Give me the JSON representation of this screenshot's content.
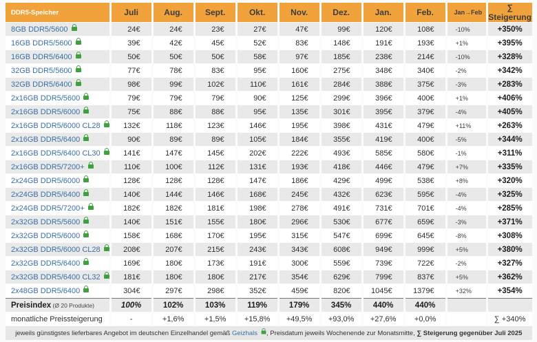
{
  "colors": {
    "header_orange": "#f1a23a",
    "link_blue": "#3a6ea5",
    "lock_green": "#3fa03f",
    "row_gray": "#e9e9e9"
  },
  "table": {
    "header": {
      "name_col": "DDR5-Speicher",
      "months": [
        "Juli",
        "Aug.",
        "Sept.",
        "Okt.",
        "Nov.",
        "Dez.",
        "Jan.",
        "Feb."
      ],
      "change_col": "Jan→Feb",
      "total_col": "∑ Steigerung"
    },
    "rows": [
      {
        "name": "8GB DDR5/5600",
        "prices": [
          "24€",
          "24€",
          "23€",
          "27€",
          "47€",
          "99€",
          "120€",
          "108€"
        ],
        "change": "-10%",
        "total": "+350%"
      },
      {
        "name": "16GB DDR5/5600",
        "prices": [
          "39€",
          "42€",
          "45€",
          "52€",
          "83€",
          "148€",
          "191€",
          "193€"
        ],
        "change": "+1%",
        "total": "+395%"
      },
      {
        "name": "16GB DDR5/6400",
        "prices": [
          "50€",
          "50€",
          "50€",
          "58€",
          "97€",
          "185€",
          "238€",
          "214€"
        ],
        "change": "-10%",
        "total": "+328%"
      },
      {
        "name": "32GB DDR5/5600",
        "prices": [
          "77€",
          "78€",
          "83€",
          "95€",
          "160€",
          "275€",
          "348€",
          "340€"
        ],
        "change": "-2%",
        "total": "+342%"
      },
      {
        "name": "32GB DDR5/6400",
        "prices": [
          "98€",
          "99€",
          "102€",
          "110€",
          "161€",
          "284€",
          "388€",
          "375€"
        ],
        "change": "-3%",
        "total": "+283%"
      },
      {
        "name": "2x16GB DDR5/5600",
        "prices": [
          "79€",
          "79€",
          "79€",
          "90€",
          "125€",
          "299€",
          "396€",
          "400€"
        ],
        "change": "+1%",
        "total": "+406%"
      },
      {
        "name": "2x16GB DDR5/6000",
        "prices": [
          "75€",
          "88€",
          "88€",
          "95€",
          "135€",
          "301€",
          "395€",
          "379€"
        ],
        "change": "-4%",
        "total": "+405%"
      },
      {
        "name": "2x16GB DDR5/6000 CL28",
        "prices": [
          "132€",
          "118€",
          "123€",
          "146€",
          "195€",
          "398€",
          "431€",
          "479€"
        ],
        "change": "+11%",
        "total": "+263%"
      },
      {
        "name": "2x16GB DDR5/6400",
        "prices": [
          "90€",
          "89€",
          "89€",
          "105€",
          "184€",
          "355€",
          "419€",
          "400€"
        ],
        "change": "-5%",
        "total": "+344%"
      },
      {
        "name": "2x16GB DDR5/6400 CL30",
        "prices": [
          "141€",
          "147€",
          "145€",
          "202€",
          "222€",
          "493€",
          "585€",
          "580€"
        ],
        "change": "-1%",
        "total": "+311%"
      },
      {
        "name": "2x16GB DDR5/7200+",
        "prices": [
          "110€",
          "100€",
          "112€",
          "131€",
          "193€",
          "418€",
          "446€",
          "479€"
        ],
        "change": "+7%",
        "total": "+335%"
      },
      {
        "name": "2x24GB DDR5/6000",
        "prices": [
          "128€",
          "128€",
          "128€",
          "147€",
          "186€",
          "429€",
          "499€",
          "538€"
        ],
        "change": "+8%",
        "total": "+320%"
      },
      {
        "name": "2x24GB DDR5/6400",
        "prices": [
          "140€",
          "144€",
          "146€",
          "168€",
          "245€",
          "432€",
          "623€",
          "595€"
        ],
        "change": "-4%",
        "total": "+325%"
      },
      {
        "name": "2x24GB DDR5/7200+",
        "prices": [
          "182€",
          "182€",
          "181€",
          "198€",
          "278€",
          "491€",
          "731€",
          "701€"
        ],
        "change": "-4%",
        "total": "+285%"
      },
      {
        "name": "2x32GB DDR5/5600",
        "prices": [
          "140€",
          "151€",
          "155€",
          "180€",
          "296€",
          "530€",
          "677€",
          "659€"
        ],
        "change": "-3%",
        "total": "+371%"
      },
      {
        "name": "2x32GB DDR5/6000",
        "prices": [
          "158€",
          "168€",
          "170€",
          "195€",
          "315€",
          "547€",
          "699€",
          "645€"
        ],
        "change": "-8%",
        "total": "+308%"
      },
      {
        "name": "2x32GB DDR5/6000 CL28",
        "prices": [
          "208€",
          "207€",
          "215€",
          "243€",
          "343€",
          "608€",
          "949€",
          "999€"
        ],
        "change": "+5%",
        "total": "+380%"
      },
      {
        "name": "2x32GB DDR5/6400",
        "prices": [
          "169€",
          "180€",
          "173€",
          "191€",
          "300€",
          "559€",
          "739€",
          "722€"
        ],
        "change": "-2%",
        "total": "+327%"
      },
      {
        "name": "2x32GB DDR5/6400 CL32",
        "prices": [
          "181€",
          "180€",
          "180€",
          "217€",
          "354€",
          "629€",
          "799€",
          "837€"
        ],
        "change": "+5%",
        "total": "+362%"
      },
      {
        "name": "2x48GB DDR5/6400",
        "prices": [
          "304€",
          "297€",
          "298€",
          "352€",
          "459€",
          "820€",
          "1045€",
          "1379€"
        ],
        "change": "+32%",
        "total": "+354%"
      }
    ],
    "summary": {
      "index_label": "Preisindex",
      "index_sub": " (Ø 20 Produkte)",
      "index_values": [
        "100%",
        "102%",
        "103%",
        "119%",
        "179%",
        "345%",
        "440%",
        "440%"
      ],
      "monthly_label": "monatliche Preissteigerung",
      "monthly_values": [
        "-",
        "+1,6%",
        "+1,5%",
        "+15,8%",
        "+49,5%",
        "+93,0%",
        "+27,6%",
        "+0,0%"
      ],
      "monthly_total": "∑ +340%"
    },
    "footer": {
      "part1": "jeweils günstigstes lieferbares Angebot im deutschen Einzelhandel gemäß ",
      "link": "Geizhals",
      "part2": ", Preisdatum jeweils Wochenende zur Monatsmitte, ",
      "part3_bold": "∑ Steigerung gegenüber Juli 2025"
    }
  }
}
